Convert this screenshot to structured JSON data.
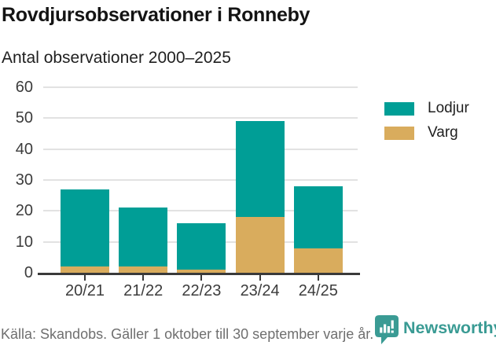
{
  "header": {
    "title": "Rovdjursobservationer i Ronneby",
    "subtitle": "Antal observationer 2000–2025"
  },
  "chart_data": {
    "type": "bar",
    "stacked": true,
    "categories": [
      "20/21",
      "21/22",
      "22/23",
      "23/24",
      "24/25"
    ],
    "series": [
      {
        "name": "Lodjur",
        "color": "#009E96",
        "values": [
          25,
          19,
          15,
          31,
          20
        ]
      },
      {
        "name": "Varg",
        "color": "#D9AC5D",
        "values": [
          2,
          2,
          1,
          18,
          8
        ]
      }
    ],
    "stack_order_bottom_to_top": [
      "Varg",
      "Lodjur"
    ],
    "totals": [
      27,
      21,
      16,
      49,
      28
    ],
    "ylim": [
      0,
      60
    ],
    "ytick_step": 10,
    "yticks": [
      0,
      10,
      20,
      30,
      40,
      50,
      60
    ],
    "grid": "horizontal",
    "legend_position": "right"
  },
  "footer": {
    "source": "Källa: Skandobs. Gäller 1 oktober till 30 september varje år.",
    "brand": "Newsworthy"
  },
  "colors": {
    "lodjur": "#009E96",
    "varg": "#D9AC5D",
    "brand_teal": "#3A9B94",
    "grid": "#E2E2E2",
    "axis": "#3A3A3A",
    "title_text": "#141414",
    "muted_text": "#6F6F6F"
  }
}
